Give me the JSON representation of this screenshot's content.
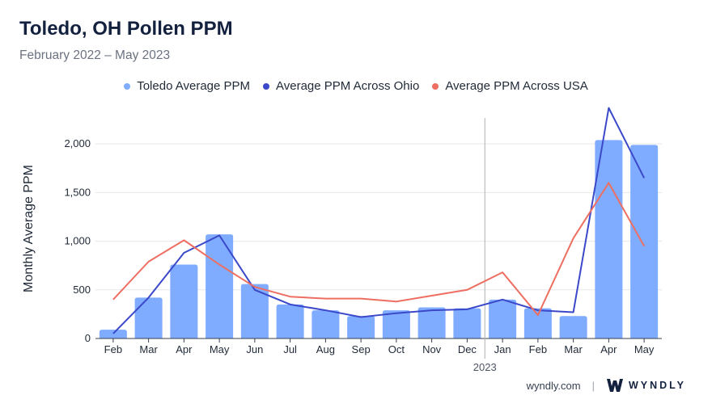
{
  "header": {
    "title": "Toledo, OH Pollen PPM",
    "subtitle": "February 2022 – May 2023"
  },
  "footer": {
    "site": "wyndly.com",
    "separator": "|",
    "brand": "WYNDLY"
  },
  "colors": {
    "bars": "#7facff",
    "ohio": "#3a48c9",
    "usa": "#ee6f62",
    "grid": "#e5e7eb",
    "divider": "#b0b0b0"
  },
  "chart_data": {
    "type": "bar",
    "title": "Toledo, OH Pollen PPM",
    "subtitle": "February 2022 – May 2023",
    "ylabel": "Monthly Average PPM",
    "xlabel": "",
    "ylim": [
      0,
      2400
    ],
    "yticks": [
      0,
      500,
      1000,
      1500,
      2000
    ],
    "ytick_labels": [
      "0",
      "500",
      "1,000",
      "1,500",
      "2,000"
    ],
    "categories": [
      "Feb",
      "Mar",
      "Apr",
      "May",
      "Jun",
      "Jul",
      "Aug",
      "Sep",
      "Oct",
      "Nov",
      "Dec",
      "Jan",
      "Feb",
      "Mar",
      "Apr",
      "May"
    ],
    "year_marker": {
      "label": "2023",
      "before_index": 11
    },
    "legend_position": "top-center",
    "series": [
      {
        "name": "Toledo Average PPM",
        "kind": "bar",
        "values": [
          90,
          420,
          760,
          1070,
          560,
          350,
          290,
          230,
          290,
          320,
          310,
          400,
          310,
          230,
          2040,
          1990
        ]
      },
      {
        "name": "Average PPM Across Ohio",
        "kind": "line",
        "values": [
          50,
          420,
          880,
          1060,
          500,
          350,
          290,
          220,
          260,
          290,
          300,
          400,
          290,
          270,
          2370,
          1650
        ]
      },
      {
        "name": "Average PPM Across USA",
        "kind": "line",
        "values": [
          400,
          790,
          1010,
          760,
          530,
          430,
          410,
          410,
          380,
          440,
          500,
          680,
          240,
          1030,
          1600,
          950
        ]
      }
    ]
  }
}
